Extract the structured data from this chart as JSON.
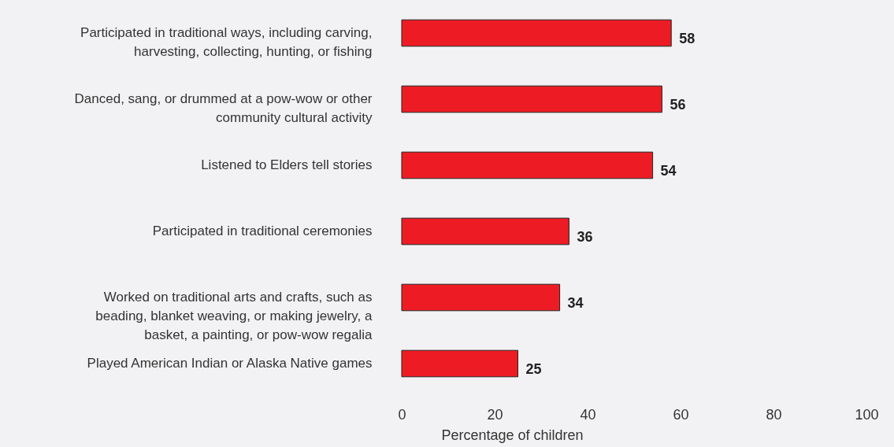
{
  "chart_data": {
    "type": "bar",
    "orientation": "horizontal",
    "xlabel": "Percentage of children",
    "categories": [
      "Participated in traditional ways, including carving,\nharvesting, collecting, hunting, or fishing",
      "Danced, sang, or drummed at a pow-wow or other\ncommunity cultural activity",
      "Listened to Elders tell stories",
      "Participated in traditional ceremonies",
      "Worked on traditional arts and crafts, such as\nbeading, blanket weaving, or making jewelry, a\nbasket, a painting, or pow-wow regalia",
      "Played American Indian or Alaska Native games"
    ],
    "values": [
      58,
      56,
      54,
      36,
      34,
      25
    ],
    "color": "#ed1c24",
    "data_labels": true,
    "grid": false,
    "xlim": [
      0,
      100
    ],
    "xticks": [
      0,
      20,
      40,
      60,
      80,
      100
    ]
  }
}
